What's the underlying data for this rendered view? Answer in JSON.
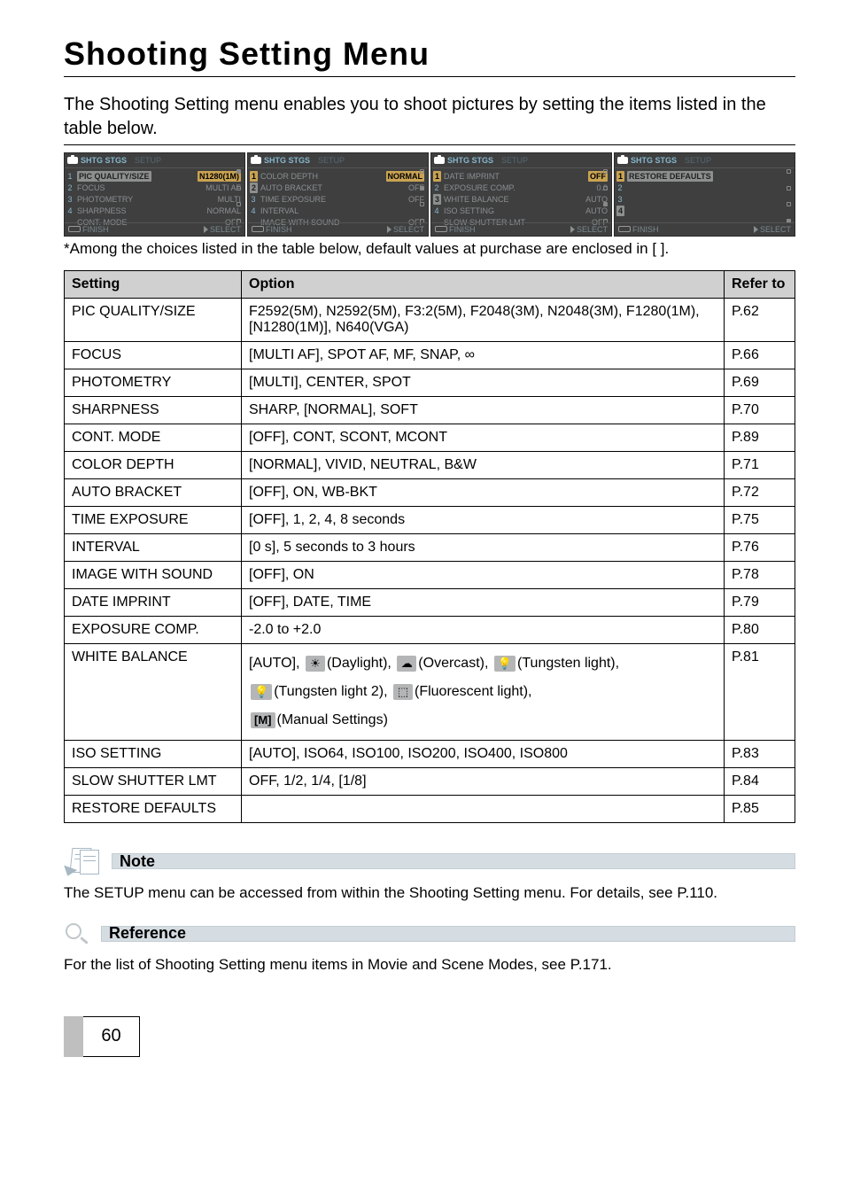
{
  "page": {
    "title": "Shooting Setting Menu",
    "intro": "The Shooting Setting menu enables you to shoot pictures by setting the items listed in the table below.",
    "caption": "*Among the choices listed in the table below, default values at purchase are enclosed in [ ].",
    "page_number": "60"
  },
  "screenshots": {
    "header_main": "SHTG STGS",
    "header_sub": "SETUP",
    "footer_finish": "FINISH",
    "footer_select": "SELECT",
    "panels": [
      {
        "rows": [
          {
            "n": "1",
            "label": "PIC QUALITY/SIZE",
            "value": "N1280(1M)",
            "sel_label": true,
            "sel_val": true
          },
          {
            "n": "2",
            "label": "FOCUS",
            "value": "MULTI AF"
          },
          {
            "n": "3",
            "label": "PHOTOMETRY",
            "value": "MULTI"
          },
          {
            "n": "4",
            "label": "SHARPNESS",
            "value": "NORMAL"
          },
          {
            "n": " ",
            "label": "CONT. MODE",
            "value": "OFF"
          }
        ],
        "scroll": [
          true,
          false,
          false,
          false
        ]
      },
      {
        "rows": [
          {
            "n": "1",
            "label": "COLOR DEPTH",
            "value": "NORMAL",
            "sel_n": true,
            "sel_val": true
          },
          {
            "n": "2",
            "label": "AUTO BRACKET",
            "value": "OFF",
            "box_n": true
          },
          {
            "n": "3",
            "label": "TIME EXPOSURE",
            "value": "OFF"
          },
          {
            "n": "4",
            "label": "INTERVAL",
            "value": ""
          },
          {
            "n": " ",
            "label": "IMAGE WITH SOUND",
            "value": "OFF"
          }
        ],
        "scroll": [
          false,
          true,
          false,
          false
        ]
      },
      {
        "rows": [
          {
            "n": "1",
            "label": "DATE IMPRINT",
            "value": "OFF",
            "sel_n": true,
            "sel_val": true
          },
          {
            "n": "2",
            "label": "EXPOSURE COMP.",
            "value": "0.0"
          },
          {
            "n": "3",
            "label": "WHITE BALANCE",
            "value": "AUTO",
            "box_n": true
          },
          {
            "n": "4",
            "label": "ISO SETTING",
            "value": "AUTO"
          },
          {
            "n": " ",
            "label": "SLOW SHUTTER LMT",
            "value": "OFF"
          }
        ],
        "scroll": [
          false,
          false,
          true,
          false
        ]
      },
      {
        "rows": [
          {
            "n": "1",
            "label": "RESTORE DEFAULTS",
            "value": "",
            "sel_n": true,
            "sel_label": true
          },
          {
            "n": "2",
            "label": "",
            "value": ""
          },
          {
            "n": "3",
            "label": "",
            "value": ""
          },
          {
            "n": "4",
            "label": "",
            "value": "",
            "box_n": true
          },
          {
            "n": " ",
            "label": "",
            "value": ""
          }
        ],
        "scroll": [
          false,
          false,
          false,
          true
        ]
      }
    ]
  },
  "table": {
    "headers": {
      "setting": "Setting",
      "option": "Option",
      "refer": "Refer to"
    },
    "rows": [
      {
        "setting": "PIC QUALITY/SIZE",
        "option": "F2592(5M), N2592(5M), F3:2(5M), F2048(3M), N2048(3M), F1280(1M), [N1280(1M)], N640(VGA)",
        "refer": "P.62"
      },
      {
        "setting": "FOCUS",
        "option": "[MULTI AF], SPOT AF, MF, SNAP, ∞",
        "refer": "P.66"
      },
      {
        "setting": "PHOTOMETRY",
        "option": "[MULTI], CENTER, SPOT",
        "refer": "P.69"
      },
      {
        "setting": "SHARPNESS",
        "option": "SHARP, [NORMAL], SOFT",
        "refer": "P.70"
      },
      {
        "setting": "CONT. MODE",
        "option": "[OFF], CONT, SCONT, MCONT",
        "refer": "P.89"
      },
      {
        "setting": "COLOR DEPTH",
        "option": "[NORMAL], VIVID, NEUTRAL, B&W",
        "refer": "P.71"
      },
      {
        "setting": "AUTO BRACKET",
        "option": "[OFF], ON, WB-BKT",
        "refer": "P.72"
      },
      {
        "setting": "TIME EXPOSURE",
        "option": "[OFF], 1, 2, 4, 8 seconds",
        "refer": "P.75"
      },
      {
        "setting": "INTERVAL",
        "option": "[0 s], 5 seconds to 3 hours",
        "refer": "P.76"
      },
      {
        "setting": "IMAGE WITH SOUND",
        "option": "[OFF], ON",
        "refer": "P.78"
      },
      {
        "setting": "DATE IMPRINT",
        "option": "[OFF], DATE, TIME",
        "refer": "P.79"
      },
      {
        "setting": "EXPOSURE COMP.",
        "option": "-2.0 to +2.0",
        "refer": "P.80"
      }
    ],
    "wb_row": {
      "setting": "WHITE BALANCE",
      "prefix": "[AUTO], ",
      "daylight": "(Daylight), ",
      "overcast": "(Overcast), ",
      "tungsten": "(Tungsten light),",
      "tungsten2": "(Tungsten light 2), ",
      "fluorescent": "(Fluorescent light),",
      "manual": "(Manual Settings)",
      "refer": "P.81"
    },
    "rows_after": [
      {
        "setting": "ISO SETTING",
        "option": "[AUTO], ISO64, ISO100, ISO200, ISO400, ISO800",
        "refer": "P.83"
      },
      {
        "setting": "SLOW SHUTTER LMT",
        "option": "OFF, 1/2, 1/4, [1/8]",
        "refer": "P.84"
      },
      {
        "setting": "RESTORE DEFAULTS",
        "option": "",
        "refer": "P.85"
      }
    ]
  },
  "note": {
    "heading": "Note",
    "text": "The SETUP menu can be accessed from within the Shooting Setting menu. For details, see P.110."
  },
  "reference": {
    "heading": "Reference",
    "text": "For the list of Shooting Setting menu items in Movie and Scene Modes, see P.171."
  },
  "icons": {
    "daylight": "☀",
    "overcast": "☁",
    "tungsten": "💡",
    "tungsten2": "💡",
    "fluorescent": "⬚",
    "manual": "[M]"
  }
}
